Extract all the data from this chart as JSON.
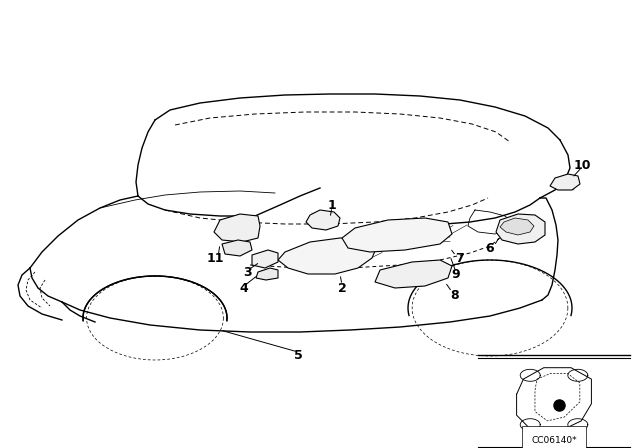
{
  "bg_color": "#ffffff",
  "line_color": "#000000",
  "fig_width": 6.4,
  "fig_height": 4.48,
  "dpi": 100,
  "code_text": "CC06140*",
  "label_fontsize": 9,
  "label_fontweight": "bold"
}
